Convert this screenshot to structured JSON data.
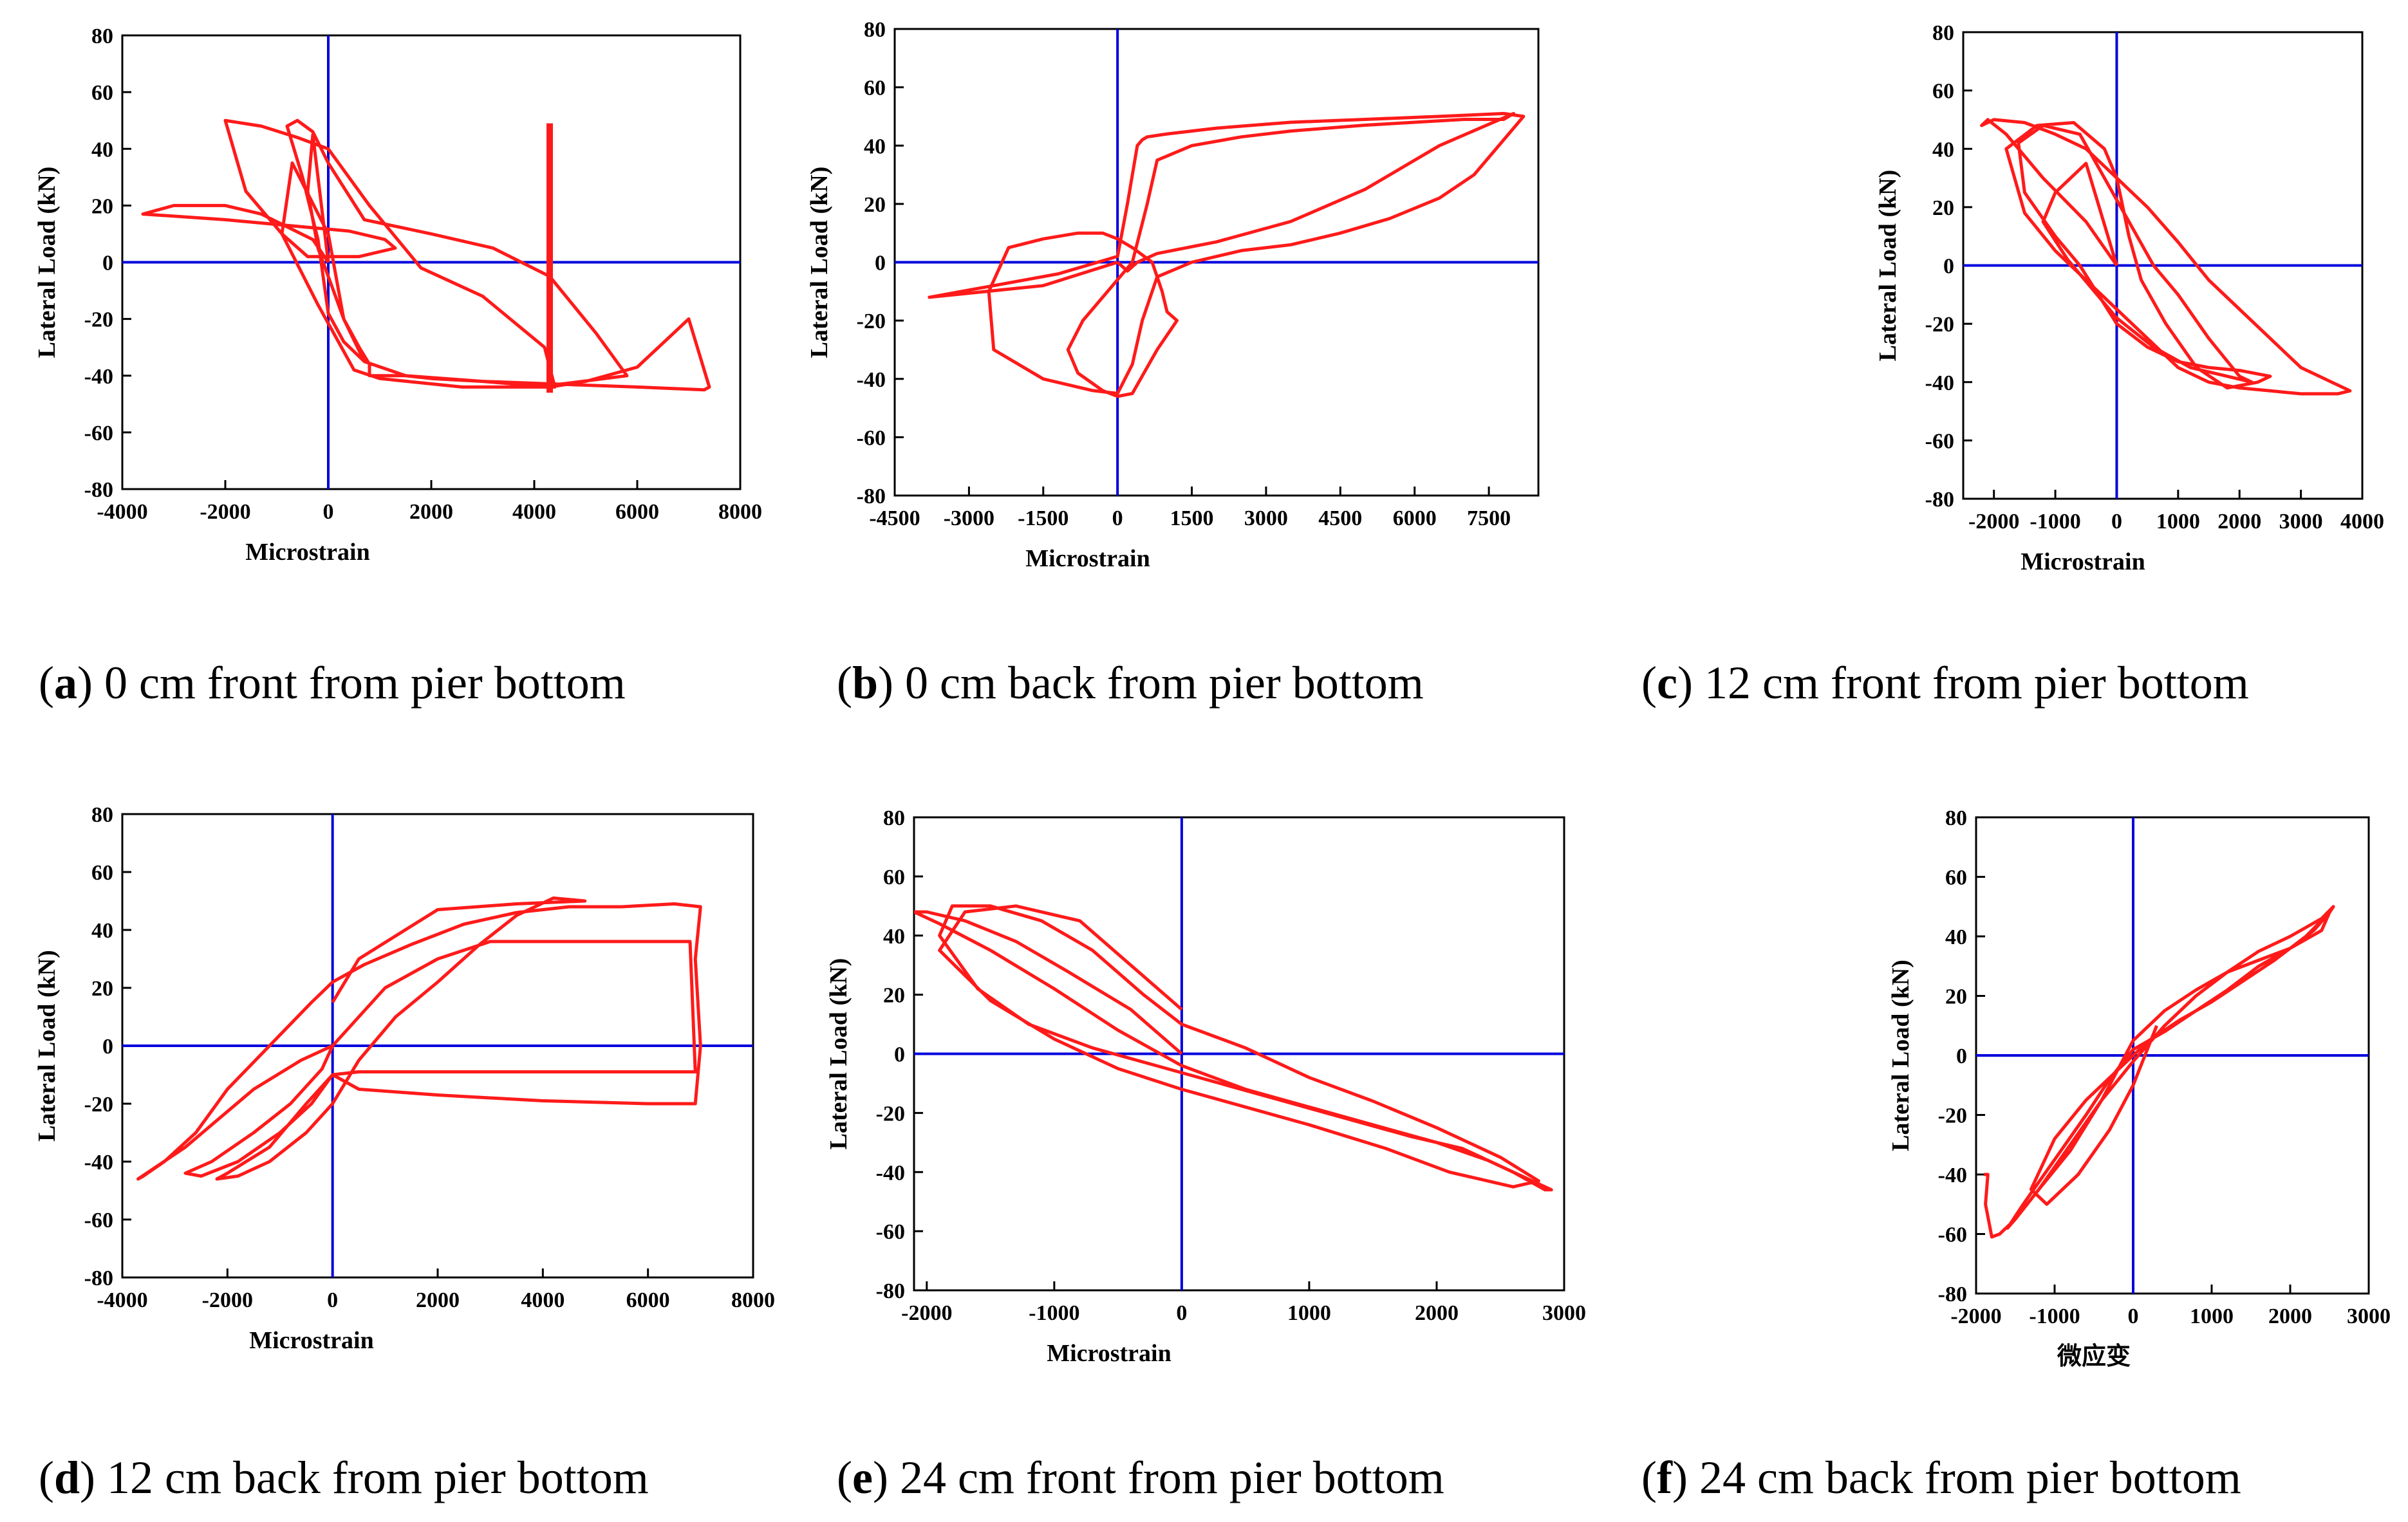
{
  "colors": {
    "curve": "#ff1a1a",
    "axes_zero": "#0000dd",
    "frame": "#000000"
  },
  "chart_data": [
    {
      "id": "a",
      "type": "line",
      "caption_letter": "a",
      "caption_text": "0 cm front from pier bottom",
      "xlabel": "Microstrain",
      "ylabel": "Lateral Load (kN)",
      "xlim": [
        -4000,
        8000
      ],
      "ylim": [
        -80,
        80
      ],
      "xticks": [
        "-4000",
        "-2000",
        "0",
        "2000",
        "4000",
        "6000",
        "8000"
      ],
      "yticks": [
        "80",
        "60",
        "40",
        "20",
        "0",
        "-20",
        "-40",
        "-60",
        "-80"
      ],
      "series": [
        {
          "name": "hysteresis",
          "x": [
            0,
            -300,
            -1300,
            -2000,
            -3000,
            -3600,
            -2000,
            -800,
            -200,
            400,
            1100,
            1300,
            600,
            -400,
            -900,
            -1600,
            -2000,
            -1300,
            -600,
            0,
            800,
            1800,
            3000,
            4200,
            4400,
            2600,
            1000,
            500,
            -200,
            -900,
            -700,
            0,
            300,
            600,
            800,
            800,
            1100,
            1500,
            2000,
            3000,
            4300,
            4300,
            5000,
            6000,
            7000,
            7400,
            7300,
            6000,
            4500,
            3000,
            1500,
            700,
            300,
            0,
            -200,
            -500,
            -800,
            -600,
            -300,
            0,
            700,
            2000,
            3200,
            4300,
            5200,
            5800,
            4500,
            3000,
            1500,
            700,
            300,
            0,
            -200,
            -400,
            -300,
            0
          ],
          "y": [
            0,
            8,
            17,
            20,
            20,
            17,
            15,
            13,
            12,
            11,
            8,
            5,
            2,
            2,
            10,
            25,
            50,
            48,
            44,
            40,
            20,
            -2,
            -12,
            -30,
            -44,
            -44,
            -41,
            -38,
            -15,
            10,
            35,
            10,
            -20,
            -30,
            -36,
            -40,
            -40,
            -40,
            -41,
            -42,
            -44,
            -44,
            -42,
            -37,
            -20,
            -44,
            -45,
            -44,
            -43,
            -42,
            -40,
            -35,
            -28,
            -18,
            8,
            30,
            48,
            50,
            46,
            35,
            15,
            10,
            5,
            -5,
            -25,
            -40,
            -43,
            -42,
            -40,
            -35,
            -20,
            -5,
            5,
            25,
            45,
            0
          ],
          "spike": {
            "x": 4300,
            "ymin": -46,
            "ymax": 49
          }
        }
      ]
    },
    {
      "id": "b",
      "type": "line",
      "caption_letter": "b",
      "caption_text": "0 cm back from pier bottom",
      "xlabel": "Microstrain",
      "ylabel": "Lateral Load (kN)",
      "xlim": [
        -4500,
        8500
      ],
      "ylim": [
        -80,
        80
      ],
      "xticks": [
        "-4500",
        "-3000",
        "-1500",
        "0",
        "1500",
        "3000",
        "4500",
        "6000",
        "7500"
      ],
      "yticks": [
        "80",
        "60",
        "40",
        "20",
        "0",
        "-20",
        "-40",
        "-60",
        "-80"
      ],
      "series": [
        {
          "name": "hysteresis",
          "x": [
            0,
            -1500,
            -3800,
            -2500,
            -1200,
            -400,
            0,
            200,
            400,
            500,
            600,
            1000,
            2000,
            3500,
            5000,
            6500,
            7800,
            8200,
            8000,
            7200,
            6500,
            5500,
            4500,
            3500,
            2500,
            1500,
            800,
            500,
            300,
            0,
            -500,
            -1500,
            -2500,
            -2600,
            -2200,
            -1500,
            -800,
            -300,
            0,
            300,
            700,
            900,
            1000,
            1200,
            800,
            300,
            0,
            -300,
            -800,
            -1000,
            -700,
            -200,
            300,
            600,
            800,
            1500,
            2500,
            3500,
            5000,
            6000,
            7000,
            7800,
            8000,
            6500,
            5000,
            3500,
            2000,
            800,
            400,
            200,
            0
          ],
          "y": [
            0,
            -8,
            -12,
            -8,
            -4,
            0,
            2,
            20,
            40,
            42,
            43,
            44,
            46,
            48,
            49,
            50,
            51,
            50,
            46,
            30,
            22,
            15,
            10,
            6,
            4,
            0,
            -5,
            -20,
            -35,
            -45,
            -44,
            -40,
            -30,
            -10,
            5,
            8,
            10,
            10,
            8,
            5,
            0,
            -10,
            -17,
            -20,
            -30,
            -45,
            -46,
            -44,
            -38,
            -30,
            -20,
            -10,
            0,
            20,
            35,
            40,
            43,
            45,
            47,
            48,
            49,
            49,
            51,
            40,
            25,
            14,
            7,
            3,
            0,
            -3,
            0
          ]
        }
      ]
    },
    {
      "id": "c",
      "type": "line",
      "caption_letter": "c",
      "caption_text": "12 cm front from pier bottom",
      "xlabel": "Microstrain",
      "ylabel": "Lateral Load (kN)",
      "xlim": [
        -2500,
        4000
      ],
      "ylim": [
        -80,
        80
      ],
      "xticks": [
        "-2000",
        "-1000",
        "0",
        "1000",
        "2000",
        "3000",
        "4000"
      ],
      "yticks": [
        "80",
        "60",
        "40",
        "20",
        "0",
        "-20",
        "-40",
        "-60",
        "-80"
      ],
      "series": [
        {
          "name": "hysteresis",
          "x": [
            0,
            -500,
            -1200,
            -1800,
            -2100,
            -2200,
            -2000,
            -1500,
            -1000,
            -500,
            0,
            500,
            1000,
            1500,
            2000,
            2500,
            3000,
            3500,
            3800,
            3600,
            3000,
            2500,
            2000,
            1500,
            1000,
            500,
            0,
            -500,
            -1000,
            -1500,
            -1800,
            -1300,
            -700,
            -200,
            0,
            200,
            400,
            800,
            1300,
            1800,
            2300,
            2500,
            2000,
            1500,
            1000,
            500,
            0,
            -300,
            -600,
            -1000,
            -1500,
            -1600,
            -1200,
            -600,
            -200,
            200,
            600,
            1000,
            1500,
            2000,
            2200,
            1800,
            1200,
            600,
            0,
            -400,
            -800,
            -1200,
            -1000,
            -500,
            0
          ],
          "y": [
            0,
            15,
            30,
            45,
            50,
            48,
            50,
            49,
            45,
            40,
            30,
            20,
            8,
            -5,
            -15,
            -25,
            -35,
            -40,
            -43,
            -44,
            -44,
            -43,
            -42,
            -40,
            -35,
            -25,
            -15,
            -5,
            5,
            18,
            40,
            48,
            49,
            40,
            30,
            10,
            -5,
            -20,
            -35,
            -42,
            -40,
            -38,
            -36,
            -35,
            -33,
            -28,
            -20,
            -10,
            0,
            10,
            25,
            42,
            48,
            45,
            30,
            15,
            0,
            -10,
            -25,
            -38,
            -40,
            -38,
            -35,
            -28,
            -18,
            -8,
            2,
            15,
            25,
            35,
            0
          ]
        }
      ]
    },
    {
      "id": "d",
      "type": "line",
      "caption_letter": "d",
      "caption_text": "12 cm back from pier bottom",
      "xlabel": "Microstrain",
      "ylabel": "Lateral Load (kN)",
      "xlim": [
        -4000,
        8000
      ],
      "ylim": [
        -80,
        80
      ],
      "xticks": [
        "-4000",
        "-2000",
        "0",
        "2000",
        "4000",
        "6000",
        "8000"
      ],
      "yticks": [
        "80",
        "60",
        "40",
        "20",
        "0",
        "-20",
        "-40",
        "-60",
        "-80"
      ],
      "series": [
        {
          "name": "hysteresis",
          "x": [
            0,
            -600,
            -1500,
            -2800,
            -3700,
            -3600,
            -3200,
            -2600,
            -2000,
            -1200,
            -400,
            0,
            600,
            1500,
            2500,
            3500,
            4500,
            5500,
            6500,
            7000,
            6900,
            7000,
            6900,
            6000,
            4000,
            2000,
            500,
            0,
            -400,
            -1000,
            -1800,
            -2500,
            -2800,
            -2300,
            -1500,
            -800,
            -200,
            0,
            500,
            1000,
            2000,
            3000,
            4000,
            5000,
            6800,
            6900,
            6000,
            4000,
            2000,
            500,
            0,
            -500,
            -1200,
            -2000,
            -2200,
            -1800,
            -1200,
            -500,
            0,
            500,
            1200,
            2000,
            2800,
            3500,
            4200,
            4800,
            3500,
            2000,
            500,
            0
          ],
          "y": [
            0,
            -5,
            -15,
            -35,
            -46,
            -45,
            -40,
            -30,
            -15,
            0,
            15,
            22,
            28,
            35,
            42,
            46,
            48,
            48,
            49,
            48,
            30,
            0,
            -20,
            -20,
            -19,
            -17,
            -15,
            -10,
            -20,
            -30,
            -40,
            -45,
            -44,
            -40,
            -30,
            -20,
            -8,
            0,
            10,
            20,
            30,
            36,
            36,
            36,
            36,
            -9,
            -9,
            -9,
            -9,
            -9,
            -10,
            -20,
            -35,
            -44,
            -46,
            -45,
            -40,
            -30,
            -20,
            -5,
            10,
            22,
            35,
            45,
            51,
            50,
            49,
            47,
            30,
            15
          ]
        }
      ]
    },
    {
      "id": "e",
      "type": "line",
      "caption_letter": "e",
      "caption_text": "24 cm front from pier bottom",
      "xlabel": "Microstrain",
      "ylabel": "Lateral Load (kN)",
      "xlim": [
        -2100,
        3000
      ],
      "ylim": [
        -80,
        80
      ],
      "xticks": [
        "-2000",
        "-1000",
        "0",
        "1000",
        "2000",
        "3000"
      ],
      "yticks": [
        "80",
        "60",
        "40",
        "20",
        "0",
        "-20",
        "-40",
        "-60",
        "-80"
      ],
      "series": [
        {
          "name": "hysteresis",
          "x": [
            0,
            -400,
            -900,
            -1300,
            -1700,
            -2000,
            -2100,
            -1900,
            -1500,
            -1000,
            -500,
            0,
            500,
            1000,
            1500,
            2000,
            2400,
            2700,
            2900,
            2850,
            2600,
            2200,
            1800,
            1300,
            800,
            300,
            -200,
            -700,
            -1200,
            -1600,
            -1900,
            -1800,
            -1500,
            -1100,
            -700,
            -300,
            0,
            500,
            1000,
            1500,
            2000,
            2500,
            2800,
            2600,
            2100,
            1600,
            1000,
            500,
            0,
            -500,
            -1000,
            -1500,
            -1900,
            -1700,
            -1300,
            -800,
            -400,
            0
          ],
          "y": [
            0,
            15,
            28,
            38,
            45,
            48,
            48,
            44,
            35,
            22,
            8,
            -4,
            -12,
            -18,
            -24,
            -30,
            -36,
            -42,
            -46,
            -46,
            -40,
            -32,
            -28,
            -22,
            -16,
            -10,
            -4,
            2,
            10,
            22,
            40,
            50,
            50,
            45,
            35,
            20,
            10,
            2,
            -8,
            -16,
            -25,
            -35,
            -43,
            -45,
            -40,
            -32,
            -24,
            -18,
            -12,
            -5,
            5,
            18,
            35,
            48,
            50,
            45,
            30,
            15
          ]
        }
      ]
    },
    {
      "id": "f",
      "type": "line",
      "caption_letter": "f",
      "caption_text": "24 cm back from pier bottom",
      "xlabel": "微应变",
      "ylabel": "Lateral Load (kN)",
      "xlim": [
        -2000,
        3000
      ],
      "ylim": [
        -80,
        80
      ],
      "xticks": [
        "-2000",
        "-1000",
        "0",
        "1000",
        "2000",
        "3000"
      ],
      "yticks": [
        "80",
        "60",
        "40",
        "20",
        "0",
        "-20",
        "-40",
        "-60",
        "-80"
      ],
      "series": [
        {
          "name": "hysteresis",
          "x": [
            -1900,
            -1850,
            -1880,
            -1800,
            -1700,
            -1500,
            -1200,
            -800,
            -400,
            0,
            400,
            800,
            1200,
            1600,
            2000,
            2400,
            2550,
            2500,
            2300,
            2000,
            1600,
            1200,
            800,
            400,
            0,
            -300,
            -600,
            -1000,
            -1400,
            -1600,
            -1500,
            -1200,
            -800,
            -400,
            0,
            400,
            800,
            1200,
            1600,
            2000,
            2400,
            2500,
            2200,
            1800,
            1400,
            1000,
            600,
            200,
            -200,
            -600,
            -1000,
            -1300,
            -1100,
            -700,
            -300,
            0,
            300
          ],
          "y": [
            -40,
            -40,
            -50,
            -61,
            -60,
            -55,
            -45,
            -30,
            -15,
            -2,
            10,
            20,
            28,
            35,
            40,
            46,
            50,
            48,
            42,
            36,
            30,
            22,
            15,
            8,
            2,
            -8,
            -20,
            -35,
            -50,
            -58,
            -55,
            -45,
            -32,
            -15,
            5,
            15,
            22,
            28,
            32,
            36,
            42,
            48,
            40,
            32,
            25,
            18,
            12,
            5,
            -5,
            -15,
            -28,
            -45,
            -50,
            -40,
            -25,
            -10,
            10
          ]
        }
      ]
    }
  ]
}
